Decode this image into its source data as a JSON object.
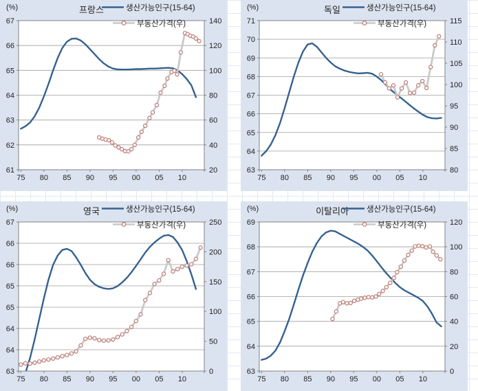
{
  "worksheet": {
    "background": "#ffffff",
    "cell_line_color": "#e2e7f1",
    "panel_background": "#dce3f0",
    "plot_background": "#ffffff",
    "gridline_color": "#9e9e9e",
    "axis_color": "#808080",
    "population_color": "#35618f",
    "price_line_color": "#c9c9c9",
    "price_marker_stroke": "#b87470",
    "price_marker_fill": "#fcf6f5",
    "text_color": "#1f1f1f"
  },
  "legend": {
    "population_label": "생산가능인구(15-64)",
    "price_label": "부동산가격(우)"
  },
  "unit_label": "(%)",
  "chart_data": [
    {
      "type": "line",
      "id": "france",
      "title": "프랑스",
      "unit_label": "(%)",
      "legend": [
        "생산가능인구(15-64)",
        "부동산가격(우)"
      ],
      "x_axis": {
        "min": 1974.5,
        "max": 2014.8,
        "tick_years": [
          1975,
          1980,
          1985,
          1990,
          1995,
          2000,
          2005,
          2010
        ],
        "tick_labels": [
          "75",
          "80",
          "85",
          "90",
          "95",
          "00",
          "05",
          "10"
        ]
      },
      "left_axis": {
        "min": 61,
        "max": 67,
        "tick_labels": [
          "67",
          "66",
          "65",
          "64",
          "63",
          "62",
          "61"
        ]
      },
      "right_axis": {
        "min": 20,
        "max": 140,
        "tick_labels": [
          "140",
          "120",
          "100",
          "80",
          "60",
          "40",
          "20"
        ],
        "aligned_with_grid": true
      },
      "population": {
        "start": 1975,
        "step": 1,
        "values": [
          62.65,
          62.75,
          62.9,
          63.15,
          63.5,
          63.95,
          64.45,
          65.0,
          65.5,
          65.9,
          66.15,
          66.27,
          66.28,
          66.2,
          66.05,
          65.85,
          65.65,
          65.45,
          65.28,
          65.15,
          65.07,
          65.04,
          65.03,
          65.03,
          65.04,
          65.05,
          65.05,
          65.06,
          65.07,
          65.07,
          65.08,
          65.09,
          65.1,
          65.08,
          65.0,
          64.85,
          64.65,
          64.4,
          63.92
        ]
      },
      "price": {
        "x": [
          1992,
          1992.7,
          1993.4,
          1994.1,
          1994.8,
          1995.5,
          1996.2,
          1996.9,
          1997.6,
          1998.3,
          1999,
          1999.7,
          2000.5,
          2001.2,
          2002,
          2002.9,
          2003.6,
          2004.5,
          2005.3,
          2006.2,
          2006.8,
          2007.7,
          2008.3,
          2008.9,
          2009.7,
          2010.6,
          2011.2,
          2011.8,
          2012.4,
          2013,
          2013.7
        ],
        "y": [
          46,
          45,
          44.3,
          43.8,
          42,
          39.5,
          38,
          36.5,
          35,
          34.8,
          36.5,
          40,
          46,
          50.5,
          55.4,
          61.6,
          66.1,
          72,
          82,
          87.5,
          93.4,
          98.6,
          99.7,
          96.7,
          114.4,
          130,
          129.1,
          127.8,
          127.1,
          125.6,
          123.5
        ]
      }
    },
    {
      "type": "line",
      "id": "germany",
      "title": "독일",
      "unit_label": "(%)",
      "legend": [
        "생산가능인구(15-64)",
        "부동산가격(우)"
      ],
      "x_axis": {
        "min": 1974.5,
        "max": 2014.8,
        "tick_years": [
          1975,
          1980,
          1985,
          1990,
          1995,
          2000,
          2005,
          2010
        ],
        "tick_labels": [
          "75",
          "80",
          "85",
          "90",
          "95",
          "00",
          "05",
          "10"
        ]
      },
      "left_axis": {
        "min": 63,
        "max": 71,
        "tick_labels": [
          "71",
          "70",
          "69",
          "68",
          "67",
          "66",
          "65",
          "64",
          "63"
        ]
      },
      "right_axis": {
        "min": 80,
        "max": 115,
        "tick_labels": [
          "115",
          "110",
          "105",
          "100",
          "95",
          "90",
          "85",
          "80"
        ],
        "aligned_with_grid": false
      },
      "population": {
        "start": 1975,
        "step": 1,
        "values": [
          63.75,
          64.0,
          64.35,
          64.85,
          65.5,
          66.3,
          67.15,
          68.0,
          68.75,
          69.35,
          69.72,
          69.78,
          69.6,
          69.3,
          69.0,
          68.75,
          68.55,
          68.42,
          68.32,
          68.25,
          68.2,
          68.17,
          68.18,
          68.2,
          68.15,
          68.0,
          67.8,
          67.55,
          67.3,
          67.1,
          66.9,
          66.7,
          66.5,
          66.3,
          66.12,
          65.95,
          65.82,
          65.76,
          65.75,
          65.78
        ]
      },
      "price": {
        "x": [
          2000.9,
          2001.8,
          2002.7,
          2003.6,
          2004.5,
          2005.4,
          2006.3,
          2007.2,
          2008.1,
          2009,
          2009.9,
          2010.8,
          2011.7,
          2012.6,
          2013.5
        ],
        "y": [
          102.4,
          100.5,
          99.1,
          99.8,
          97.0,
          99.1,
          100.5,
          98.0,
          98.1,
          99.8,
          100.8,
          99.2,
          104.1,
          109.2,
          111.3
        ]
      }
    },
    {
      "type": "line",
      "id": "uk",
      "title": "영국",
      "unit_label": "(%)",
      "legend": [
        "생산가능인구(15-64)",
        "부동산가격(우)"
      ],
      "x_axis": {
        "min": 1974.5,
        "max": 2014.8,
        "tick_years": [
          1975,
          1980,
          1985,
          1990,
          1995,
          2000,
          2005,
          2010
        ],
        "tick_labels": [
          "75",
          "80",
          "85",
          "90",
          "95",
          "00",
          "05",
          "10"
        ]
      },
      "left_axis": {
        "min": 63,
        "max": 67,
        "tick_labels": [
          "67",
          "66",
          "66",
          "65",
          "65",
          "64",
          "64",
          "63"
        ]
      },
      "right_axis": {
        "min": 0,
        "max": 250,
        "tick_labels": [
          "250",
          "200",
          "150",
          "100",
          "50",
          "0"
        ],
        "aligned_with_grid": false
      },
      "population": {
        "start": 1975,
        "step": 1,
        "values": [
          62.7,
          62.95,
          63.35,
          63.85,
          64.4,
          64.95,
          65.45,
          65.85,
          66.1,
          66.25,
          66.28,
          66.22,
          66.05,
          65.85,
          65.63,
          65.45,
          65.33,
          65.26,
          65.22,
          65.2,
          65.22,
          65.28,
          65.38,
          65.5,
          65.65,
          65.82,
          66.0,
          66.18,
          66.33,
          66.45,
          66.55,
          66.63,
          66.65,
          66.6,
          66.45,
          66.25,
          65.95,
          65.6,
          65.2
        ]
      },
      "price": {
        "x": [
          1975,
          1976,
          1977,
          1978,
          1979,
          1980,
          1981,
          1982,
          1983,
          1984,
          1985,
          1986,
          1987,
          1988,
          1989,
          1990,
          1991,
          1992,
          1993,
          1994,
          1995,
          1996,
          1997,
          1998,
          1999,
          2000,
          2001,
          2002,
          2003,
          2004,
          2005,
          2006,
          2007,
          2008,
          2009,
          2010,
          2011,
          2012,
          2013,
          2014
        ],
        "y": [
          11,
          13,
          12.5,
          14,
          16,
          18,
          19.5,
          21,
          23,
          25,
          27,
          29.5,
          33,
          43,
          54,
          56,
          55,
          52,
          51,
          51.5,
          53,
          57,
          61.5,
          67,
          74,
          84,
          95,
          119,
          131,
          146,
          152,
          163,
          186,
          167,
          171,
          175,
          177,
          179,
          188,
          207
        ]
      }
    },
    {
      "type": "line",
      "id": "italy",
      "title": "이탈리아",
      "unit_label": "(%)",
      "legend": [
        "생산가능인구(15-64)",
        "부동산가격(우)"
      ],
      "x_axis": {
        "min": 1974.5,
        "max": 2014.8,
        "tick_years": [
          1975,
          1980,
          1985,
          1990,
          1995,
          2000,
          2005,
          2010
        ],
        "tick_labels": [
          "75",
          "80",
          "85",
          "90",
          "95",
          "00",
          "05",
          "10"
        ]
      },
      "left_axis": {
        "min": 63,
        "max": 69,
        "tick_labels": [
          "69",
          "68",
          "67",
          "66",
          "65",
          "64",
          "63"
        ]
      },
      "right_axis": {
        "min": 0,
        "max": 120,
        "tick_labels": [
          "120",
          "100",
          "80",
          "60",
          "40",
          "20",
          "0"
        ],
        "aligned_with_grid": true
      },
      "population": {
        "start": 1975,
        "step": 1,
        "values": [
          63.45,
          63.5,
          63.62,
          63.82,
          64.15,
          64.6,
          65.1,
          65.68,
          66.28,
          66.85,
          67.35,
          67.8,
          68.15,
          68.42,
          68.58,
          68.65,
          68.62,
          68.52,
          68.42,
          68.32,
          68.22,
          68.12,
          68.0,
          67.85,
          67.65,
          67.42,
          67.18,
          66.95,
          66.75,
          66.55,
          66.38,
          66.25,
          66.15,
          66.05,
          65.95,
          65.82,
          65.6,
          65.3,
          64.95,
          64.8
        ]
      },
      "price": {
        "x": [
          1990.4,
          1991.2,
          1992,
          1992.7,
          1993.5,
          1994.3,
          1995.1,
          1995.9,
          1996.6,
          1997.4,
          1998.2,
          1999,
          1999.8,
          2000.5,
          2001.3,
          2002.1,
          2002.9,
          2003.7,
          2004.4,
          2005.2,
          2006,
          2006.8,
          2007.6,
          2008.3,
          2009.1,
          2009.9,
          2010.7,
          2011.5,
          2012.2,
          2013,
          2013.8
        ],
        "y": [
          42,
          48,
          54.5,
          55.5,
          54.5,
          54.8,
          56.5,
          57.5,
          58.3,
          59,
          59.5,
          59.3,
          60,
          62,
          64.5,
          67.5,
          71,
          75,
          79.5,
          84,
          89,
          93.5,
          97,
          100.3,
          100.8,
          100.5,
          99.5,
          100.3,
          96,
          93,
          90
        ]
      }
    }
  ]
}
